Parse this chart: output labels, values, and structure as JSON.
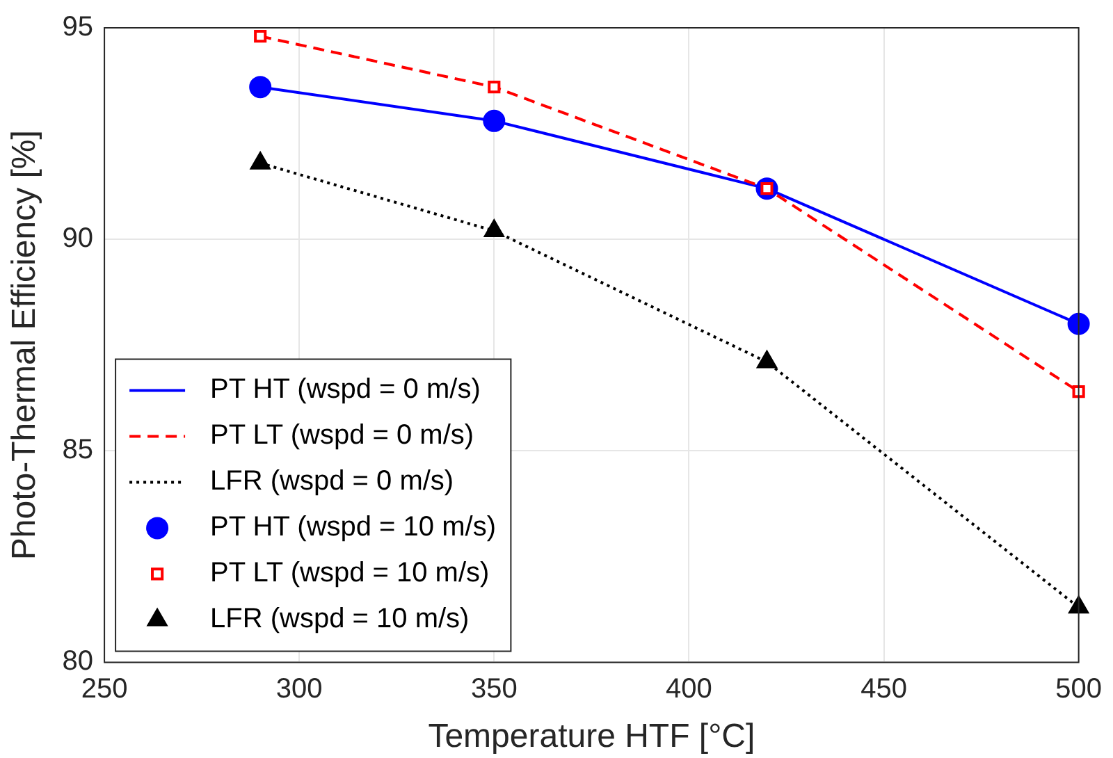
{
  "chart_data": {
    "type": "line",
    "xlabel": "Temperature HTF [°C]",
    "ylabel": "Photo-Thermal Efficiency [%]",
    "x": [
      290,
      350,
      420,
      500
    ],
    "xlim": [
      250,
      500
    ],
    "xticks": [
      250,
      300,
      350,
      400,
      450,
      500
    ],
    "ylim": [
      80,
      95
    ],
    "yticks": [
      80,
      85,
      90,
      95
    ],
    "grid": true,
    "legend": "bottom left",
    "series": [
      {
        "name": "PT HT (wspd = 0 m/s)",
        "color": "#0000ff",
        "marker": "none",
        "line_style": "solid",
        "values": [
          93.6,
          92.8,
          91.2,
          88.0
        ]
      },
      {
        "name": "PT LT (wspd = 0 m/s)",
        "color": "#ff0000",
        "marker": "none",
        "line_style": "dashed",
        "values": [
          94.8,
          93.6,
          91.2,
          86.4
        ]
      },
      {
        "name": "LFR (wspd = 0 m/s)",
        "color": "#000000",
        "marker": "none",
        "line_style": "dotted",
        "values": [
          91.8,
          90.2,
          87.1,
          81.3
        ]
      },
      {
        "name": "PT HT (wspd = 10 m/s)",
        "type": "scatter",
        "color": "#0000ff",
        "marker": "circle",
        "values": [
          93.6,
          92.8,
          91.2,
          88.0
        ]
      },
      {
        "name": "PT LT (wspd = 10 m/s)",
        "type": "scatter",
        "color": "#ff0000",
        "marker": "square",
        "values": [
          94.8,
          93.6,
          91.2,
          86.4
        ]
      },
      {
        "name": "LFR (wspd = 10 m/s)",
        "type": "scatter",
        "color": "#000000",
        "marker": "triangle",
        "values": [
          91.8,
          90.2,
          87.1,
          81.3
        ]
      }
    ]
  }
}
